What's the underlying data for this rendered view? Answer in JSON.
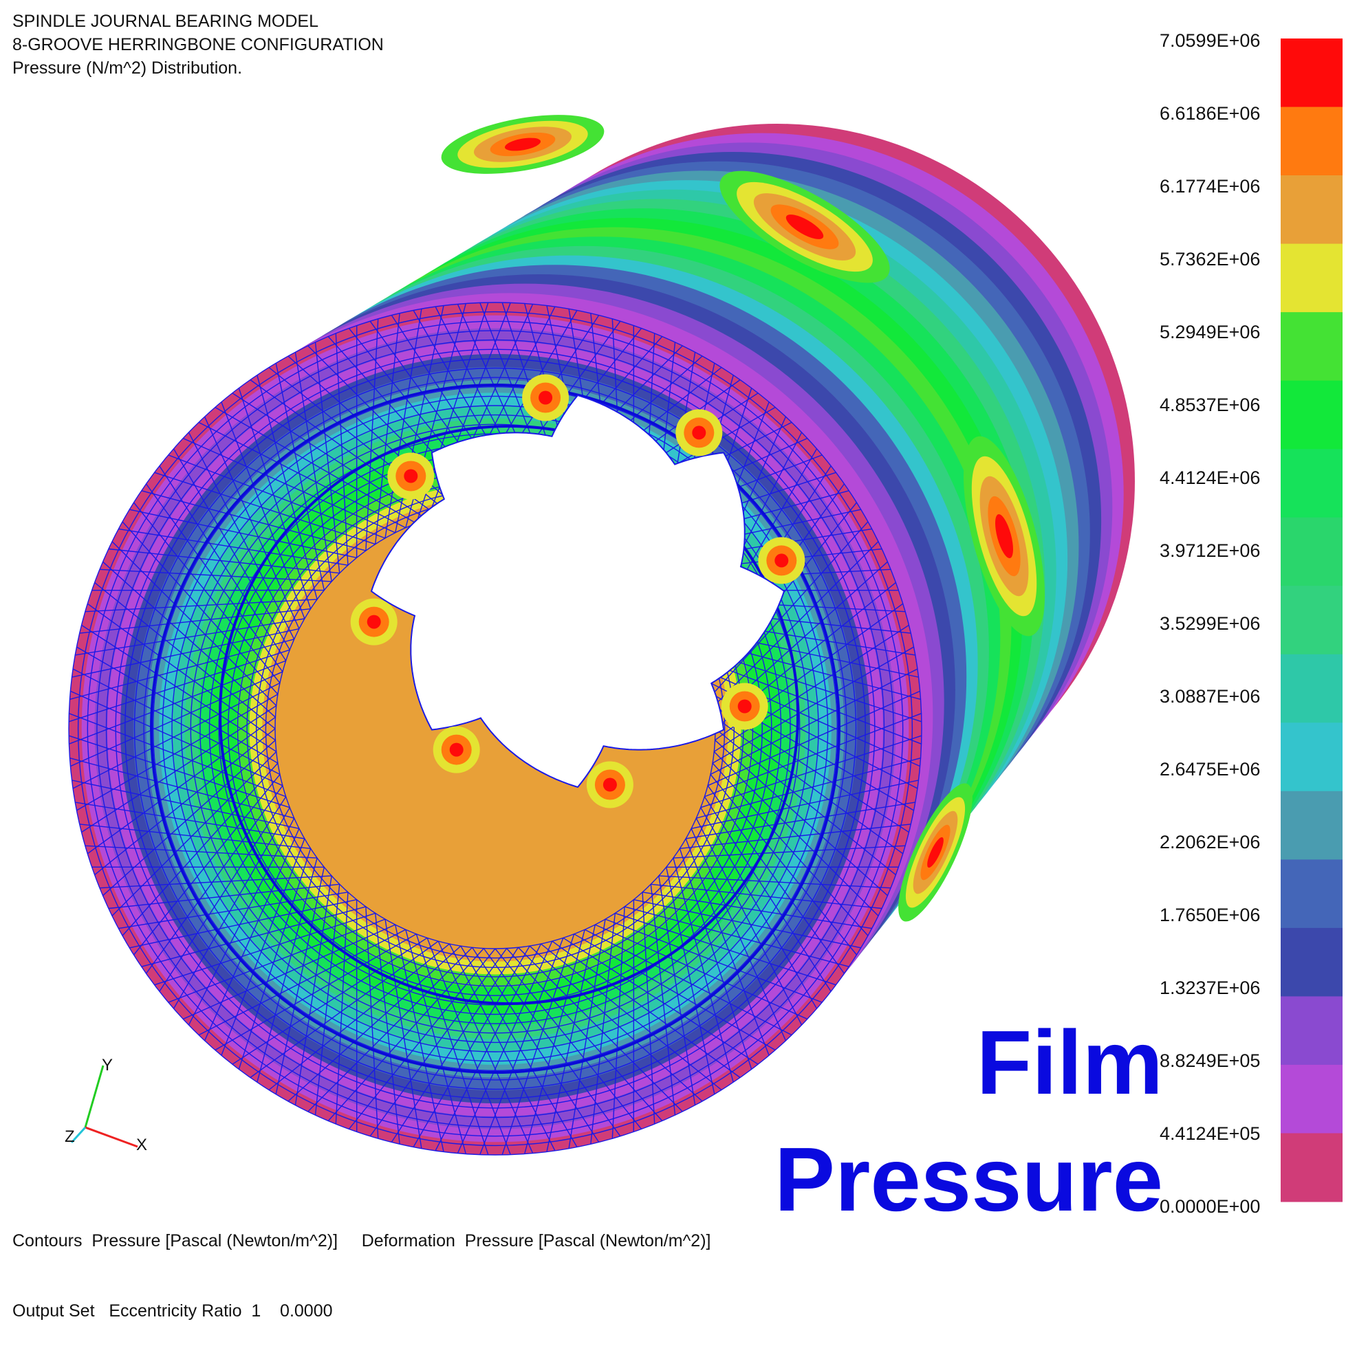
{
  "header": {
    "line1": "SPINDLE JOURNAL BEARING MODEL",
    "line2": "8-GROOVE HERRINGBONE CONFIGURATION",
    "line3": "Pressure (N/m^2) Distribution."
  },
  "footer": {
    "line1": "Contours  Pressure [Pascal (Newton/m^2)]     Deformation  Pressure [Pascal (Newton/m^2)]",
    "line2": "Output Set   Eccentricity Ratio  1    0.0000"
  },
  "overlay": {
    "word1": "Film",
    "word2": "Pressure"
  },
  "triad": {
    "x": "X",
    "y": "Y",
    "z": "Z"
  },
  "legend": {
    "labels": [
      "7.0599E+06",
      "6.6186E+06",
      "6.1774E+06",
      "5.7362E+06",
      "5.2949E+06",
      "4.8537E+06",
      "4.4124E+06",
      "3.9712E+06",
      "3.5299E+06",
      "3.0887E+06",
      "2.6475E+06",
      "2.2062E+06",
      "1.7650E+06",
      "1.3237E+06",
      "8.8249E+05",
      "4.4124E+05",
      "0.0000E+00"
    ],
    "colors": [
      "#ff0a0a",
      "#ff7a10",
      "#e8a038",
      "#e4e432",
      "#44e234",
      "#12e83a",
      "#16e25a",
      "#2ad66c",
      "#32d27e",
      "#2ec8a8",
      "#34c4cc",
      "#4a9cb0",
      "#4466b8",
      "#3c48ac",
      "#8a4ad0",
      "#b44ad8",
      "#d03c78"
    ],
    "unit": "Pa"
  },
  "groove_count": 8
}
